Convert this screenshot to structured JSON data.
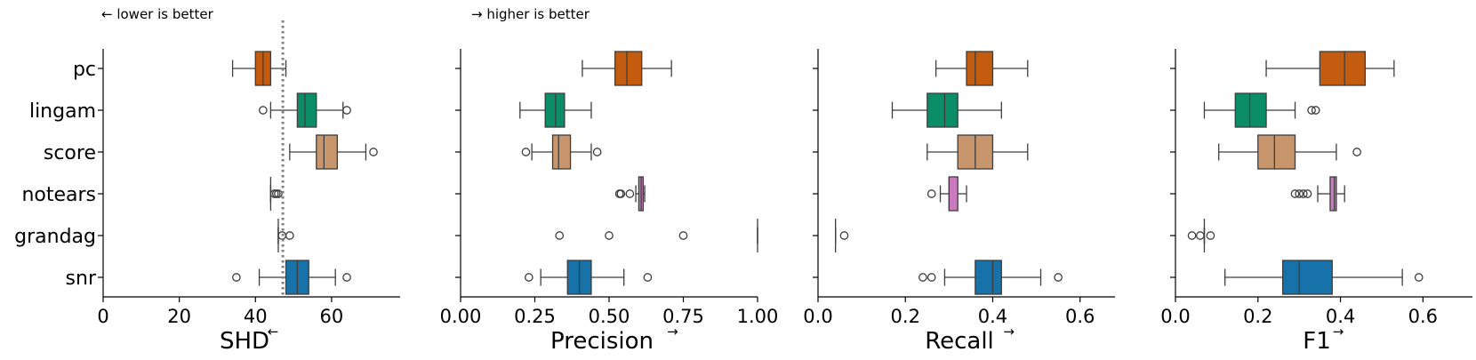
{
  "annotations": {
    "left": "← lower is better",
    "right": "→ higher is better"
  },
  "colors": {
    "pc": "#c45c10",
    "lingam": "#0b8e68",
    "score": "#c7966c",
    "notears": "#cc7ac0",
    "grandag": "#d6d6d6",
    "snr": "#1672a8"
  },
  "chart_data": [
    {
      "type": "box",
      "title": "",
      "xlabel": "SHD",
      "xlabel_arrow": "←",
      "categories": [
        "pc",
        "lingam",
        "score",
        "notears",
        "grandag",
        "snr"
      ],
      "xlim": [
        0,
        78
      ],
      "xticks": [
        0,
        20,
        40,
        60
      ],
      "xticklabels": [
        "0",
        "20",
        "40",
        "60"
      ],
      "reference_line": 47.2,
      "boxes": [
        {
          "cat": "pc",
          "whislo": 34,
          "q1": 40,
          "med": 42,
          "q3": 44,
          "whishi": 48,
          "fliers": []
        },
        {
          "cat": "lingam",
          "whislo": 44,
          "q1": 51,
          "med": 53,
          "q3": 56,
          "whishi": 63,
          "fliers": [
            42,
            64
          ]
        },
        {
          "cat": "score",
          "whislo": 49,
          "q1": 56,
          "med": 58,
          "q3": 61.5,
          "whishi": 69,
          "fliers": [
            71
          ]
        },
        {
          "cat": "notears",
          "whislo": 44,
          "q1": 44,
          "med": 44,
          "q3": 44,
          "whishi": 44,
          "fliers": [
            45,
            45.5,
            46
          ]
        },
        {
          "cat": "grandag",
          "whislo": 46,
          "q1": 46,
          "med": 46,
          "q3": 46,
          "whishi": 46,
          "fliers": [
            47,
            49
          ]
        },
        {
          "cat": "snr",
          "whislo": 41,
          "q1": 48,
          "med": 51,
          "q3": 54,
          "whishi": 61,
          "fliers": [
            35,
            64
          ]
        }
      ]
    },
    {
      "type": "box",
      "title": "",
      "xlabel": "Precision",
      "xlabel_arrow": "→",
      "categories": [
        "pc",
        "lingam",
        "score",
        "notears",
        "grandag",
        "snr"
      ],
      "xlim": [
        0,
        1.0
      ],
      "xticks": [
        0,
        0.25,
        0.5,
        0.75,
        1.0
      ],
      "xticklabels": [
        "0.00",
        "0.25",
        "0.50",
        "0.75",
        "1.00"
      ],
      "boxes": [
        {
          "cat": "pc",
          "whislo": 0.41,
          "q1": 0.52,
          "med": 0.56,
          "q3": 0.61,
          "whishi": 0.71,
          "fliers": []
        },
        {
          "cat": "lingam",
          "whislo": 0.2,
          "q1": 0.285,
          "med": 0.32,
          "q3": 0.35,
          "whishi": 0.44,
          "fliers": []
        },
        {
          "cat": "score",
          "whislo": 0.24,
          "q1": 0.31,
          "med": 0.33,
          "q3": 0.37,
          "whishi": 0.44,
          "fliers": [
            0.22,
            0.46
          ]
        },
        {
          "cat": "notears",
          "whislo": 0.59,
          "q1": 0.6,
          "med": 0.608,
          "q3": 0.615,
          "whishi": 0.62,
          "fliers": [
            0.535,
            0.54,
            0.57
          ]
        },
        {
          "cat": "grandag",
          "whislo": 1.0,
          "q1": 1.0,
          "med": 1.0,
          "q3": 1.0,
          "whishi": 1.0,
          "fliers": [
            0.333,
            0.5,
            0.75
          ]
        },
        {
          "cat": "snr",
          "whislo": 0.27,
          "q1": 0.36,
          "med": 0.4,
          "q3": 0.44,
          "whishi": 0.55,
          "fliers": [
            0.23,
            0.63
          ]
        }
      ]
    },
    {
      "type": "box",
      "title": "",
      "xlabel": "Recall",
      "xlabel_arrow": "→",
      "categories": [
        "pc",
        "lingam",
        "score",
        "notears",
        "grandag",
        "snr"
      ],
      "xlim": [
        0,
        0.68
      ],
      "xticks": [
        0,
        0.2,
        0.4,
        0.6
      ],
      "xticklabels": [
        "0.0",
        "0.2",
        "0.4",
        "0.6"
      ],
      "boxes": [
        {
          "cat": "pc",
          "whislo": 0.27,
          "q1": 0.34,
          "med": 0.36,
          "q3": 0.4,
          "whishi": 0.48,
          "fliers": []
        },
        {
          "cat": "lingam",
          "whislo": 0.17,
          "q1": 0.25,
          "med": 0.29,
          "q3": 0.32,
          "whishi": 0.42,
          "fliers": []
        },
        {
          "cat": "score",
          "whislo": 0.25,
          "q1": 0.32,
          "med": 0.36,
          "q3": 0.4,
          "whishi": 0.48,
          "fliers": []
        },
        {
          "cat": "notears",
          "whislo": 0.28,
          "q1": 0.3,
          "med": 0.3,
          "q3": 0.32,
          "whishi": 0.34,
          "fliers": [
            0.26
          ]
        },
        {
          "cat": "grandag",
          "whislo": 0.04,
          "q1": 0.04,
          "med": 0.04,
          "q3": 0.04,
          "whishi": 0.04,
          "fliers": [
            0.06
          ]
        },
        {
          "cat": "snr",
          "whislo": 0.29,
          "q1": 0.36,
          "med": 0.4,
          "q3": 0.42,
          "whishi": 0.51,
          "fliers": [
            0.24,
            0.26,
            0.55
          ]
        }
      ]
    },
    {
      "type": "box",
      "title": "",
      "xlabel": "F1",
      "xlabel_arrow": "→",
      "categories": [
        "pc",
        "lingam",
        "score",
        "notears",
        "grandag",
        "snr"
      ],
      "xlim": [
        0,
        0.72
      ],
      "xticks": [
        0,
        0.2,
        0.4,
        0.6
      ],
      "xticklabels": [
        "0.0",
        "0.2",
        "0.4",
        "0.6"
      ],
      "boxes": [
        {
          "cat": "pc",
          "whislo": 0.22,
          "q1": 0.35,
          "med": 0.41,
          "q3": 0.46,
          "whishi": 0.53,
          "fliers": []
        },
        {
          "cat": "lingam",
          "whislo": 0.07,
          "q1": 0.145,
          "med": 0.18,
          "q3": 0.22,
          "whishi": 0.29,
          "fliers": [
            0.33,
            0.34
          ]
        },
        {
          "cat": "score",
          "whislo": 0.105,
          "q1": 0.2,
          "med": 0.24,
          "q3": 0.29,
          "whishi": 0.39,
          "fliers": [
            0.44
          ]
        },
        {
          "cat": "notears",
          "whislo": 0.345,
          "q1": 0.375,
          "med": 0.385,
          "q3": 0.39,
          "whishi": 0.41,
          "fliers": [
            0.29,
            0.3,
            0.31,
            0.32
          ]
        },
        {
          "cat": "grandag",
          "whislo": 0.07,
          "q1": 0.07,
          "med": 0.07,
          "q3": 0.07,
          "whishi": 0.07,
          "fliers": [
            0.04,
            0.06,
            0.085
          ]
        },
        {
          "cat": "snr",
          "whislo": 0.12,
          "q1": 0.26,
          "med": 0.3,
          "q3": 0.38,
          "whishi": 0.55,
          "fliers": [
            0.59
          ]
        }
      ]
    }
  ]
}
